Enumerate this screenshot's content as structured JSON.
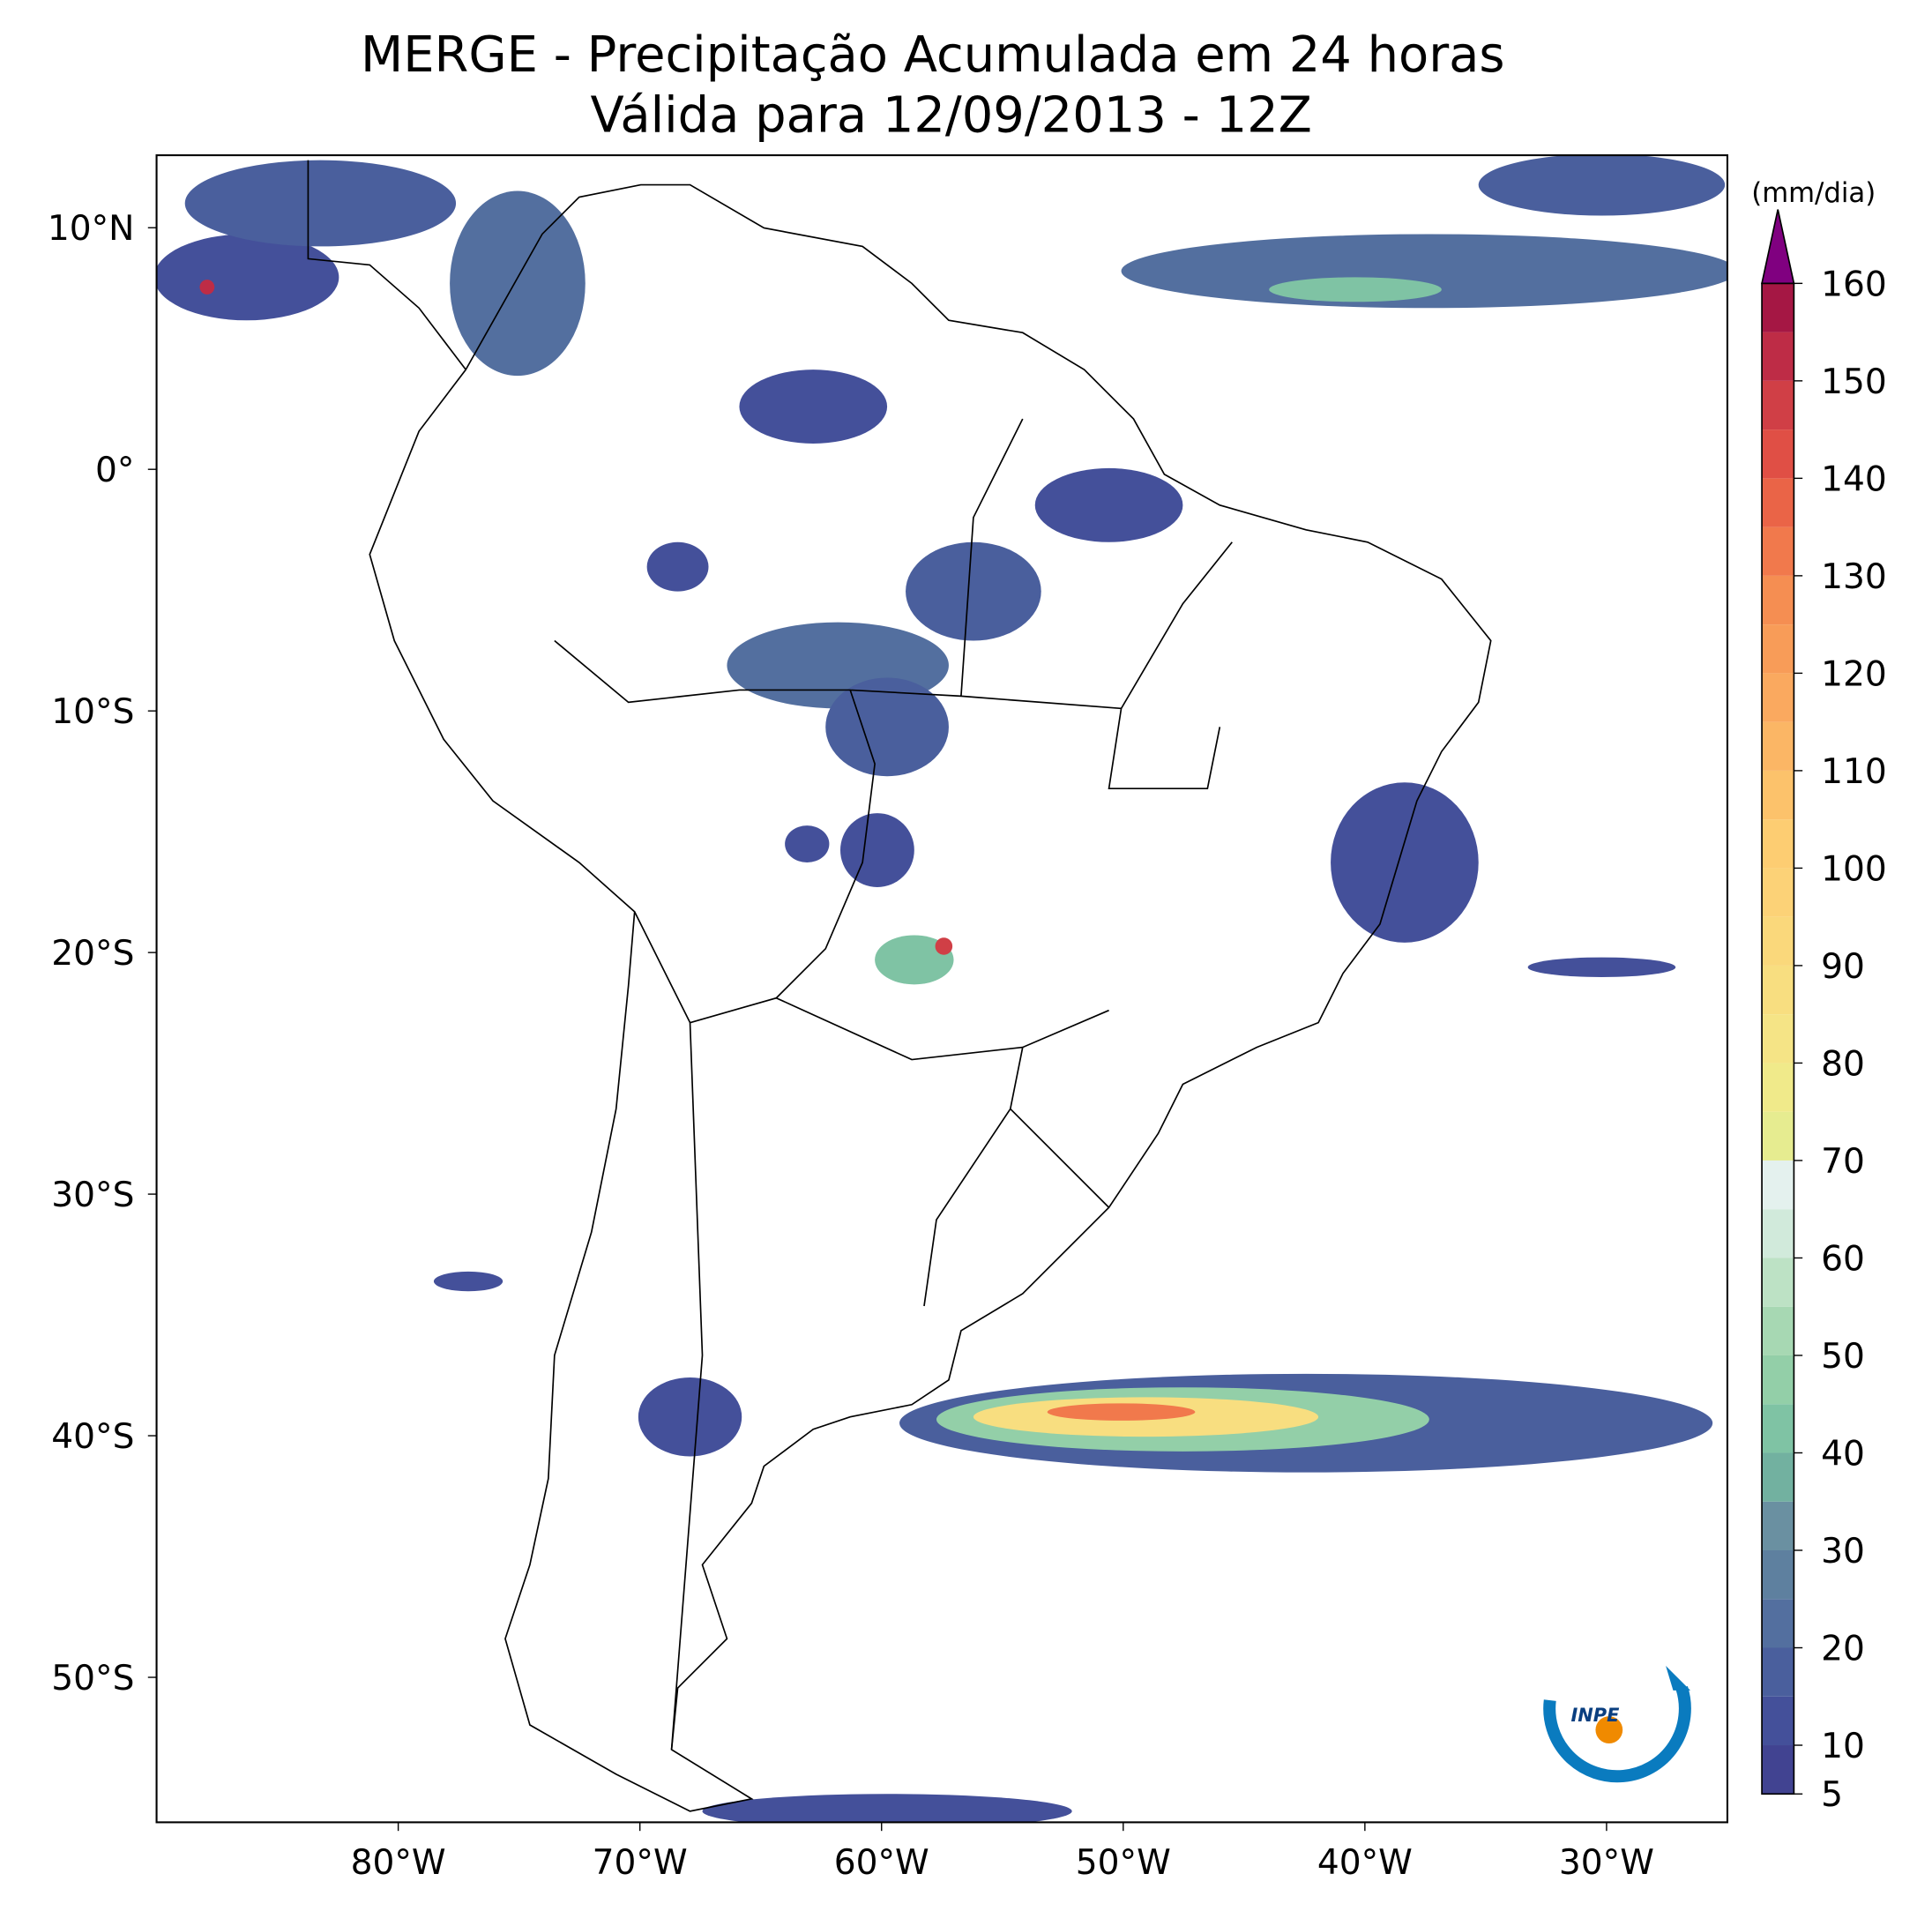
{
  "title": "MERGE - Precipitação Acumulada em 24 horas",
  "subtitle": "Válida para 12/09/2013 - 12Z",
  "map": {
    "lon_range": [
      -90,
      -25
    ],
    "lat_range": [
      -56,
      13
    ],
    "lon_ticks": [
      {
        "value": -80,
        "label": "80°W"
      },
      {
        "value": -70,
        "label": "70°W"
      },
      {
        "value": -60,
        "label": "60°W"
      },
      {
        "value": -50,
        "label": "50°W"
      },
      {
        "value": -40,
        "label": "40°W"
      },
      {
        "value": -30,
        "label": "30°W"
      }
    ],
    "lat_ticks": [
      {
        "value": 10,
        "label": "10°N"
      },
      {
        "value": 0,
        "label": "0°"
      },
      {
        "value": -10,
        "label": "10°S"
      },
      {
        "value": -20,
        "label": "20°S"
      },
      {
        "value": -30,
        "label": "30°S"
      },
      {
        "value": -40,
        "label": "40°S"
      },
      {
        "value": -50,
        "label": "50°S"
      }
    ]
  },
  "colorbar": {
    "unit": "(mm/dia)",
    "levels": [
      5,
      10,
      15,
      20,
      25,
      30,
      35,
      40,
      45,
      50,
      55,
      60,
      65,
      70,
      75,
      80,
      85,
      90,
      95,
      100,
      105,
      110,
      115,
      120,
      125,
      130,
      135,
      140,
      145,
      150,
      155,
      160
    ],
    "ticks": [
      5,
      10,
      20,
      30,
      40,
      50,
      60,
      70,
      80,
      90,
      100,
      110,
      120,
      130,
      140,
      150,
      160
    ],
    "colors": [
      "#414391",
      "#44509a",
      "#4a5f9d",
      "#536f9f",
      "#5e809f",
      "#6a90a1",
      "#72b1a0",
      "#7fc3a4",
      "#93cfa8",
      "#a7d8b3",
      "#bde2c5",
      "#d1eadb",
      "#e4f1ee",
      "#e6ec90",
      "#f0ea8a",
      "#f5e486",
      "#f8de80",
      "#fad87b",
      "#fcd277",
      "#fdcd72",
      "#fcc26b",
      "#fbb665",
      "#faa95f",
      "#f89c58",
      "#f58e52",
      "#f1794c",
      "#ea6447",
      "#e04f45",
      "#d03f46",
      "#be2c46",
      "#a51744"
    ],
    "over_color": "#800080"
  },
  "logo": "INPE"
}
